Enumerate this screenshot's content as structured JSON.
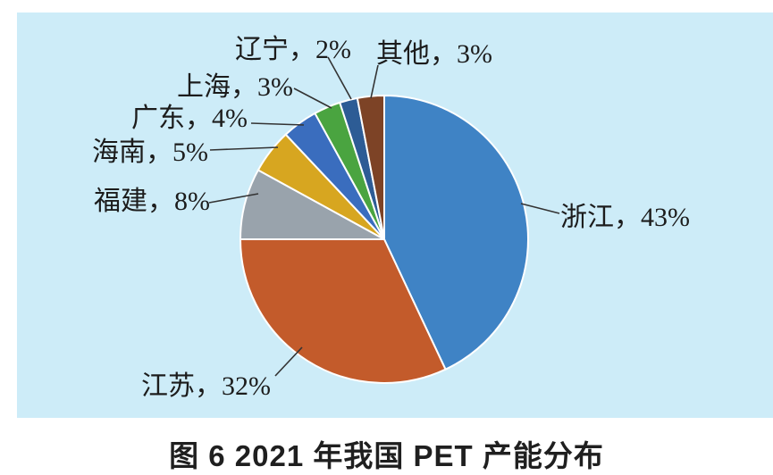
{
  "panel": {
    "background": "#cdecf8"
  },
  "caption": {
    "text": "图 6  2021 年我国 PET 产能分布"
  },
  "chart_data": {
    "type": "pie",
    "title": "2021 年我国 PET 产能分布",
    "start_angle_deg": 0,
    "direction": "clockwise",
    "legend_position": "none",
    "label_style": "callout-lines-outside",
    "segments": [
      {
        "label": "浙江",
        "value_pct": 43,
        "color": "#3f83c5",
        "display": "浙江，43%"
      },
      {
        "label": "江苏",
        "value_pct": 32,
        "color": "#c35b2b",
        "display": "江苏，32%"
      },
      {
        "label": "福建",
        "value_pct": 8,
        "color": "#99a3ac",
        "display": "福建，8%"
      },
      {
        "label": "海南",
        "value_pct": 5,
        "color": "#d7a620",
        "display": "海南，5%"
      },
      {
        "label": "广东",
        "value_pct": 4,
        "color": "#3a6dbe",
        "display": "广东，4%"
      },
      {
        "label": "上海",
        "value_pct": 3,
        "color": "#4aa440",
        "display": "上海，3%"
      },
      {
        "label": "辽宁",
        "value_pct": 2,
        "color": "#2d5c95",
        "display": "辽宁，2%"
      },
      {
        "label": "其他",
        "value_pct": 3,
        "color": "#7d4326",
        "display": "其他，3%"
      }
    ]
  }
}
